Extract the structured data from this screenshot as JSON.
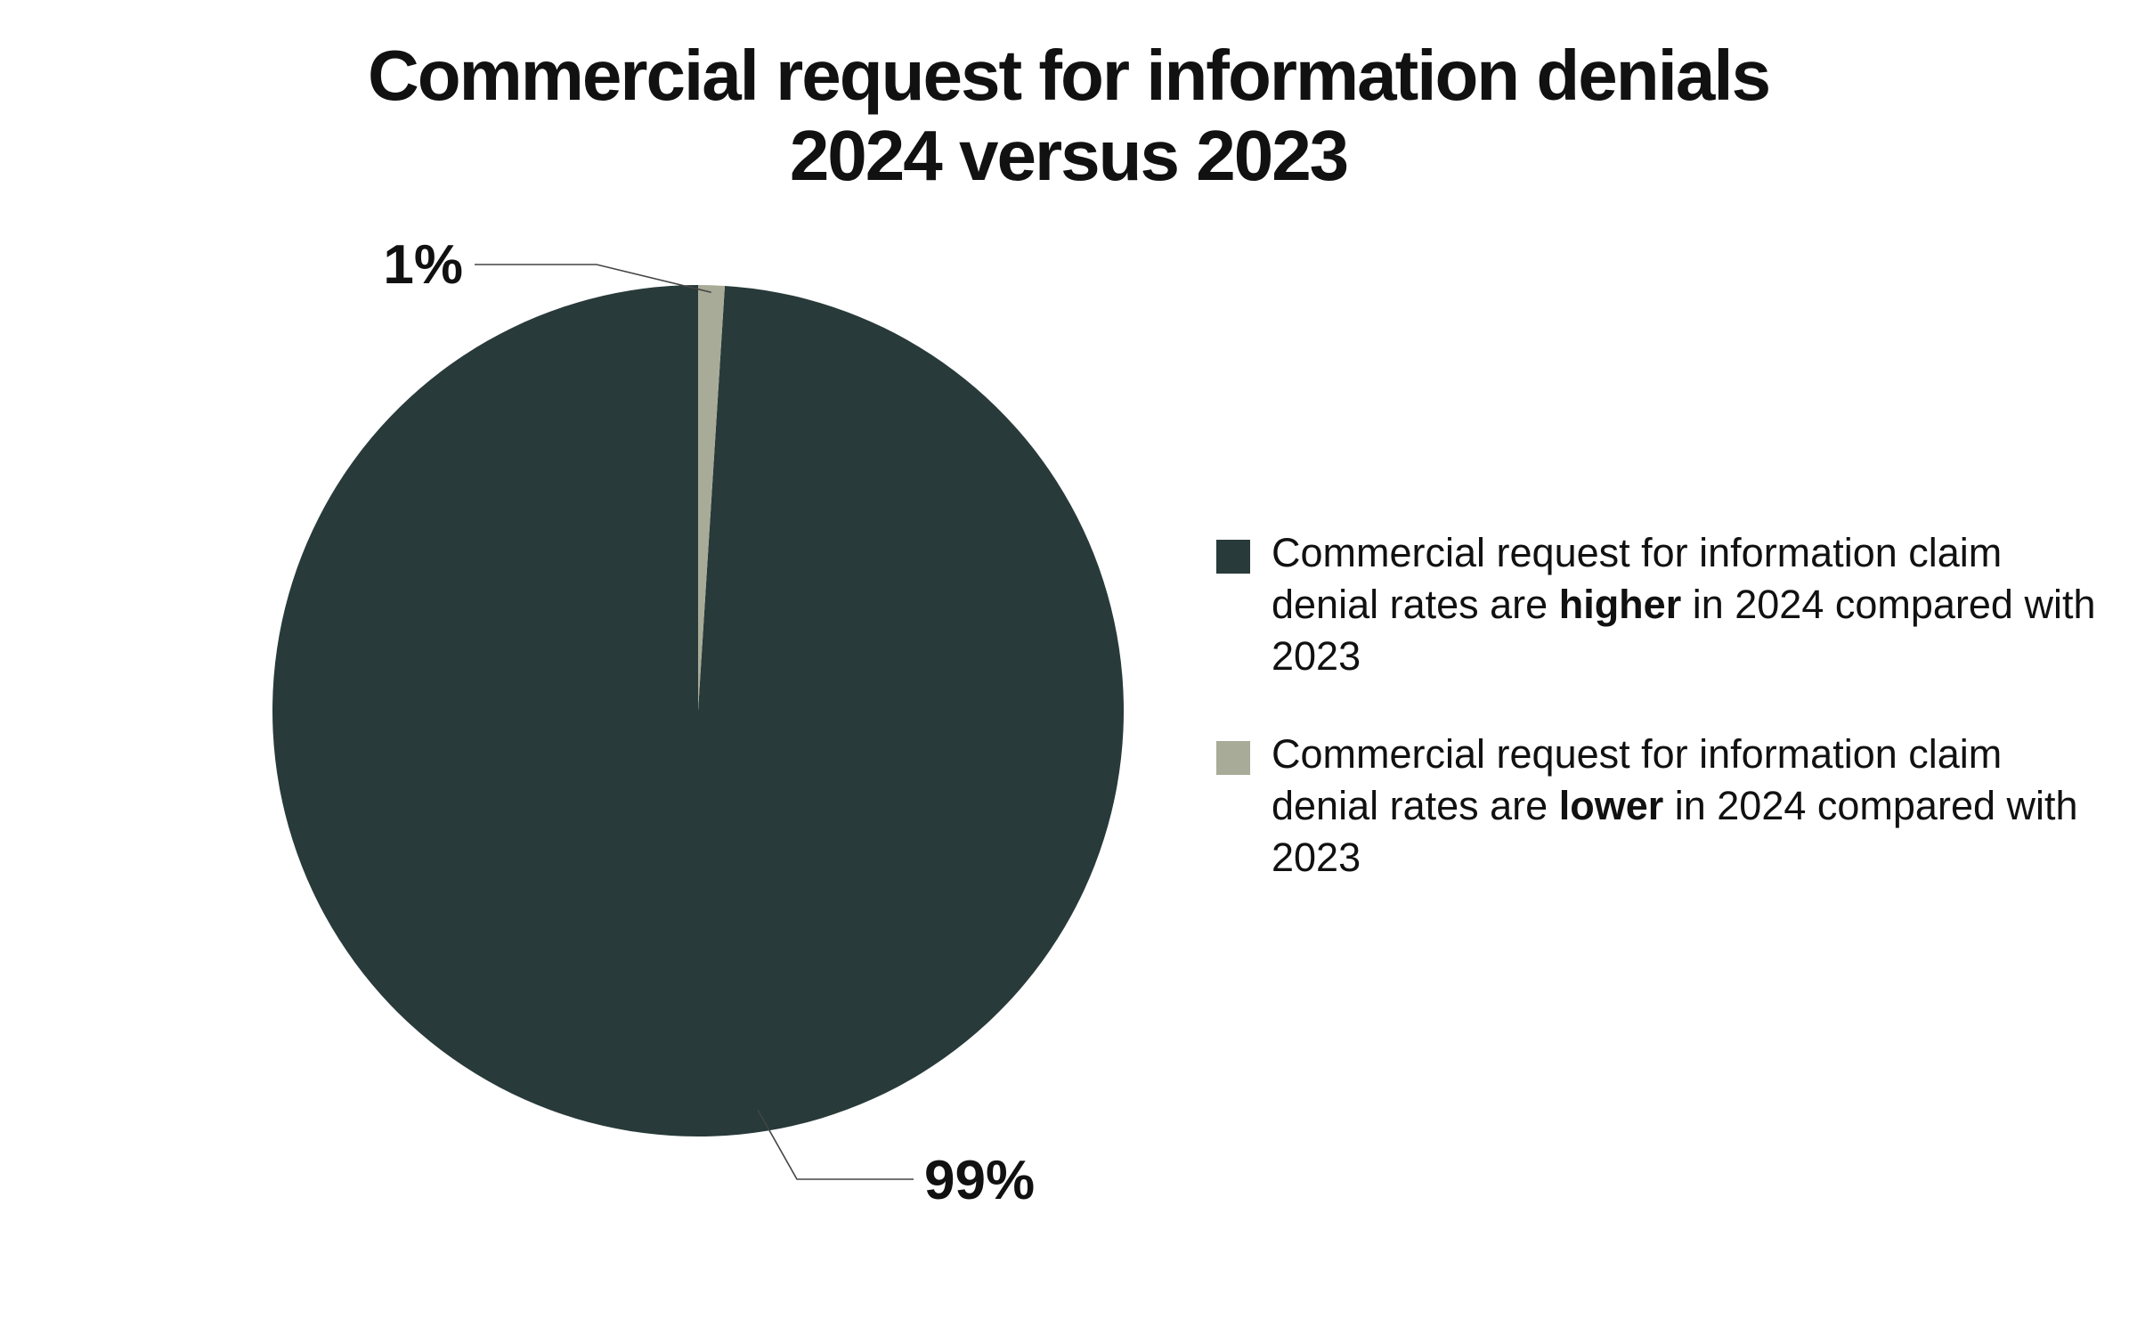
{
  "title": {
    "line1": "Commercial request for information denials",
    "line2": "2024 versus 2023"
  },
  "colors": {
    "higher": "#283a39",
    "lower": "#a7ab98",
    "leader": "#444444"
  },
  "chart_data": {
    "type": "pie",
    "slices": [
      {
        "label_before": "Commercial request for information claim denial rates are ",
        "label_emphasis": "higher",
        "label_after": " in 2024 compared with 2023",
        "value": 99,
        "display": "99%",
        "color": "#283a39"
      },
      {
        "label_before": "Commercial request for information claim denial rates are ",
        "label_emphasis": "lower",
        "label_after": " in 2024 compared with 2023",
        "value": 1,
        "display": "1%",
        "color": "#a7ab98"
      }
    ],
    "legend_position": "right"
  }
}
